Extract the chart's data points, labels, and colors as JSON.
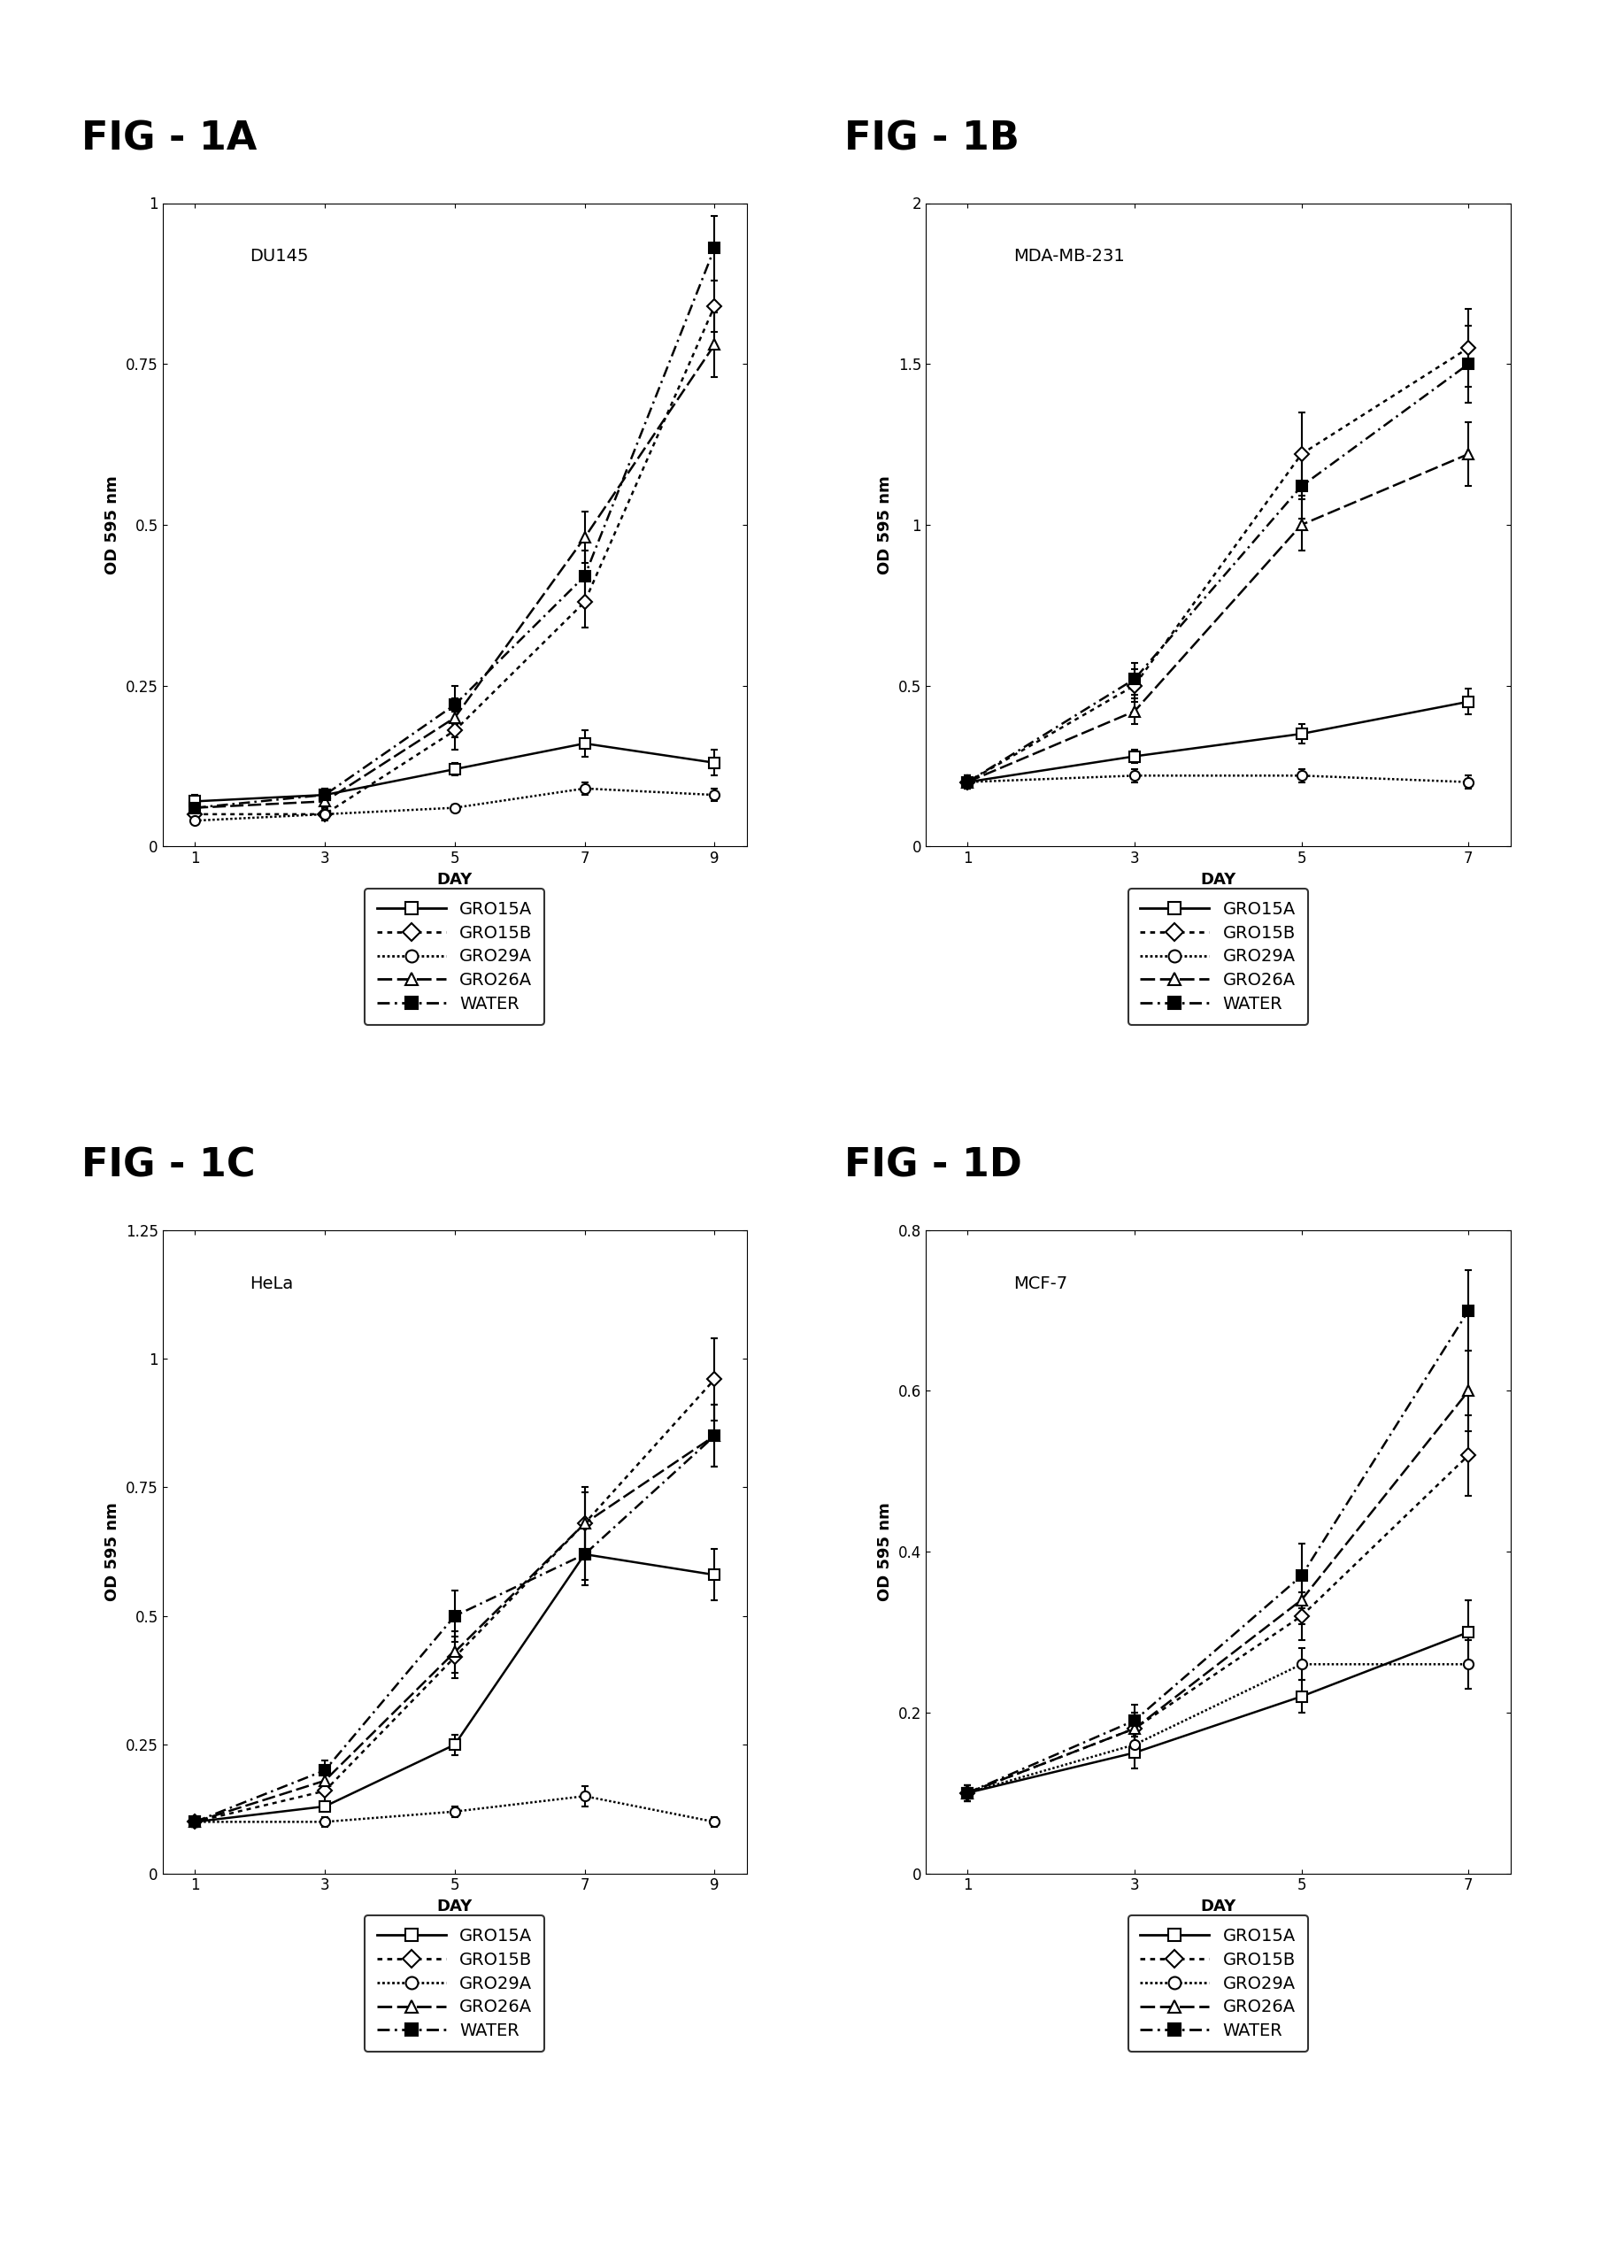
{
  "fig_titles": [
    "FIG - 1A",
    "FIG - 1B",
    "FIG - 1C",
    "FIG - 1D"
  ],
  "cell_lines": [
    "DU145",
    "MDA-MB-231",
    "HeLa",
    "MCF-7"
  ],
  "A": {
    "days": [
      1,
      3,
      5,
      7,
      9
    ],
    "GRO15A": {
      "y": [
        0.07,
        0.08,
        0.12,
        0.16,
        0.13
      ],
      "yerr": [
        0.01,
        0.01,
        0.01,
        0.02,
        0.02
      ]
    },
    "GRO15B": {
      "y": [
        0.05,
        0.05,
        0.18,
        0.38,
        0.84
      ],
      "yerr": [
        0.01,
        0.01,
        0.03,
        0.04,
        0.04
      ]
    },
    "GRO29A": {
      "y": [
        0.04,
        0.05,
        0.06,
        0.09,
        0.08
      ],
      "yerr": [
        0.005,
        0.005,
        0.005,
        0.01,
        0.01
      ]
    },
    "GRO26A": {
      "y": [
        0.06,
        0.07,
        0.2,
        0.48,
        0.78
      ],
      "yerr": [
        0.01,
        0.01,
        0.03,
        0.04,
        0.05
      ]
    },
    "WATER": {
      "y": [
        0.06,
        0.08,
        0.22,
        0.42,
        0.93
      ],
      "yerr": [
        0.01,
        0.01,
        0.03,
        0.04,
        0.05
      ]
    }
  },
  "B": {
    "days": [
      1,
      3,
      5,
      7
    ],
    "GRO15A": {
      "y": [
        0.2,
        0.28,
        0.35,
        0.45
      ],
      "yerr": [
        0.02,
        0.02,
        0.03,
        0.04
      ]
    },
    "GRO15B": {
      "y": [
        0.2,
        0.5,
        1.22,
        1.55
      ],
      "yerr": [
        0.02,
        0.05,
        0.13,
        0.12
      ]
    },
    "GRO29A": {
      "y": [
        0.2,
        0.22,
        0.22,
        0.2
      ],
      "yerr": [
        0.02,
        0.02,
        0.02,
        0.02
      ]
    },
    "GRO26A": {
      "y": [
        0.2,
        0.42,
        1.0,
        1.22
      ],
      "yerr": [
        0.02,
        0.04,
        0.08,
        0.1
      ]
    },
    "WATER": {
      "y": [
        0.2,
        0.52,
        1.12,
        1.5
      ],
      "yerr": [
        0.02,
        0.05,
        0.1,
        0.12
      ]
    }
  },
  "C": {
    "days": [
      1,
      3,
      5,
      7,
      9
    ],
    "GRO15A": {
      "y": [
        0.1,
        0.13,
        0.25,
        0.62,
        0.58
      ],
      "yerr": [
        0.01,
        0.01,
        0.02,
        0.05,
        0.05
      ]
    },
    "GRO15B": {
      "y": [
        0.1,
        0.16,
        0.42,
        0.68,
        0.96
      ],
      "yerr": [
        0.01,
        0.02,
        0.04,
        0.07,
        0.08
      ]
    },
    "GRO29A": {
      "y": [
        0.1,
        0.1,
        0.12,
        0.15,
        0.1
      ],
      "yerr": [
        0.01,
        0.01,
        0.01,
        0.02,
        0.01
      ]
    },
    "GRO26A": {
      "y": [
        0.1,
        0.18,
        0.43,
        0.68,
        0.85
      ],
      "yerr": [
        0.01,
        0.02,
        0.04,
        0.06,
        0.06
      ]
    },
    "WATER": {
      "y": [
        0.1,
        0.2,
        0.5,
        0.62,
        0.85
      ],
      "yerr": [
        0.01,
        0.02,
        0.05,
        0.06,
        0.06
      ]
    }
  },
  "D": {
    "days": [
      1,
      3,
      5,
      7
    ],
    "GRO15A": {
      "y": [
        0.1,
        0.15,
        0.22,
        0.3
      ],
      "yerr": [
        0.01,
        0.02,
        0.02,
        0.04
      ]
    },
    "GRO15B": {
      "y": [
        0.1,
        0.18,
        0.32,
        0.52
      ],
      "yerr": [
        0.01,
        0.02,
        0.03,
        0.05
      ]
    },
    "GRO29A": {
      "y": [
        0.1,
        0.16,
        0.26,
        0.26
      ],
      "yerr": [
        0.01,
        0.01,
        0.02,
        0.03
      ]
    },
    "GRO26A": {
      "y": [
        0.1,
        0.18,
        0.34,
        0.6
      ],
      "yerr": [
        0.01,
        0.02,
        0.03,
        0.05
      ]
    },
    "WATER": {
      "y": [
        0.1,
        0.19,
        0.37,
        0.7
      ],
      "yerr": [
        0.01,
        0.02,
        0.04,
        0.05
      ]
    }
  },
  "ylims": {
    "A": [
      0,
      1.0
    ],
    "B": [
      0,
      2.0
    ],
    "C": [
      0,
      1.25
    ],
    "D": [
      0,
      0.8
    ]
  },
  "yticks": {
    "A": [
      0,
      0.25,
      0.5,
      0.75,
      1.0
    ],
    "B": [
      0,
      0.5,
      1.0,
      1.5,
      2.0
    ],
    "C": [
      0,
      0.25,
      0.5,
      0.75,
      1.0,
      1.25
    ],
    "D": [
      0,
      0.2,
      0.4,
      0.6,
      0.8
    ]
  },
  "series_order": [
    "GRO15A",
    "GRO15B",
    "GRO29A",
    "GRO26A",
    "WATER"
  ],
  "xlabel": "DAY",
  "ylabel": "OD 595 nm",
  "background_color": "#ffffff",
  "title_fontsize": 32,
  "label_fontsize": 13,
  "tick_fontsize": 12,
  "legend_fontsize": 14,
  "cell_fontsize": 14
}
